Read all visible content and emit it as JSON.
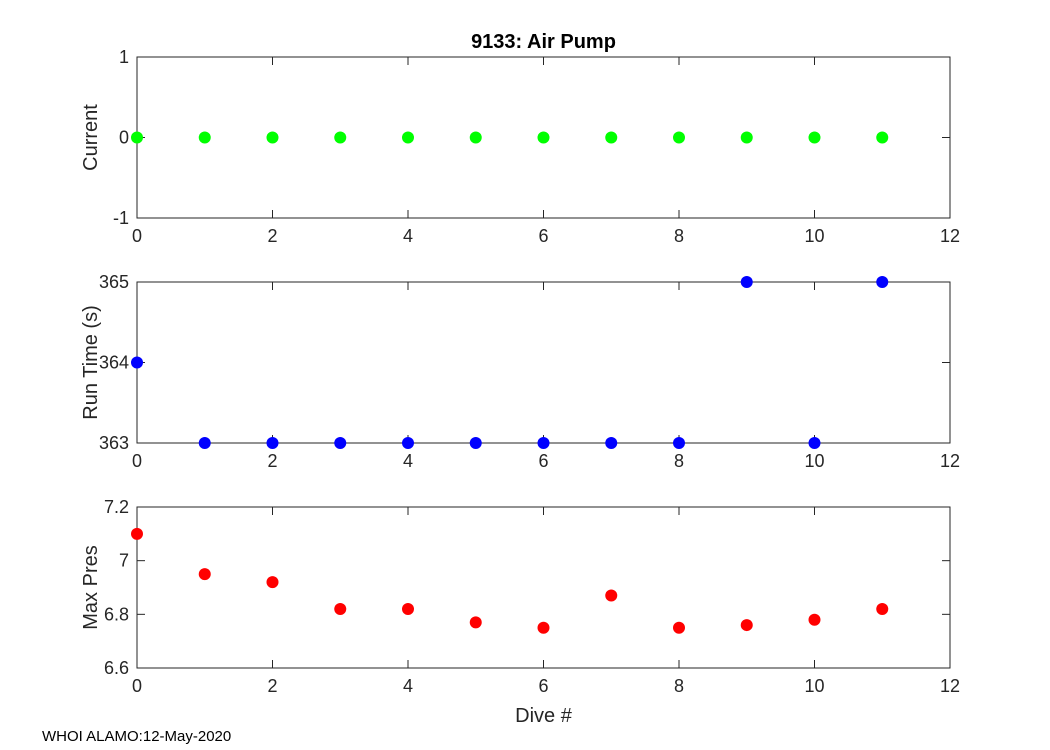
{
  "footer": "WHOI ALAMO:12-May-2020",
  "chart_data": [
    {
      "type": "scatter",
      "title": "9133: Air Pump",
      "xlabel": "",
      "ylabel": "Current",
      "xlim": [
        0,
        12
      ],
      "ylim": [
        -1,
        1
      ],
      "xticks": [
        0,
        2,
        4,
        6,
        8,
        10,
        12
      ],
      "yticks": [
        -1,
        0,
        1
      ],
      "grid": true,
      "color": "#00ff00",
      "x": [
        0,
        1,
        2,
        3,
        4,
        5,
        6,
        7,
        8,
        9,
        10,
        11
      ],
      "y": [
        0,
        0,
        0,
        0,
        0,
        0,
        0,
        0,
        0,
        0,
        0,
        0
      ]
    },
    {
      "type": "scatter",
      "title": "",
      "xlabel": "",
      "ylabel": "Run Time (s)",
      "xlim": [
        0,
        12
      ],
      "ylim": [
        363,
        365
      ],
      "xticks": [
        0,
        2,
        4,
        6,
        8,
        10,
        12
      ],
      "yticks": [
        363,
        364,
        365
      ],
      "grid": true,
      "color": "#0000ff",
      "x": [
        0,
        1,
        2,
        3,
        4,
        5,
        6,
        7,
        8,
        9,
        10,
        11
      ],
      "y": [
        364,
        363,
        363,
        363,
        363,
        363,
        363,
        363,
        363,
        365,
        363,
        365
      ]
    },
    {
      "type": "scatter",
      "title": "",
      "xlabel": "Dive #",
      "ylabel": "Max Pres",
      "xlim": [
        0,
        12
      ],
      "ylim": [
        6.6,
        7.2
      ],
      "xticks": [
        0,
        2,
        4,
        6,
        8,
        10,
        12
      ],
      "yticks": [
        6.6,
        6.8,
        7,
        7.2
      ],
      "grid": true,
      "color": "#ff0000",
      "x": [
        0,
        1,
        2,
        3,
        4,
        5,
        6,
        7,
        8,
        9,
        10,
        11
      ],
      "y": [
        7.1,
        6.95,
        6.92,
        6.82,
        6.82,
        6.77,
        6.75,
        6.87,
        6.75,
        6.76,
        6.78,
        6.82
      ]
    }
  ]
}
